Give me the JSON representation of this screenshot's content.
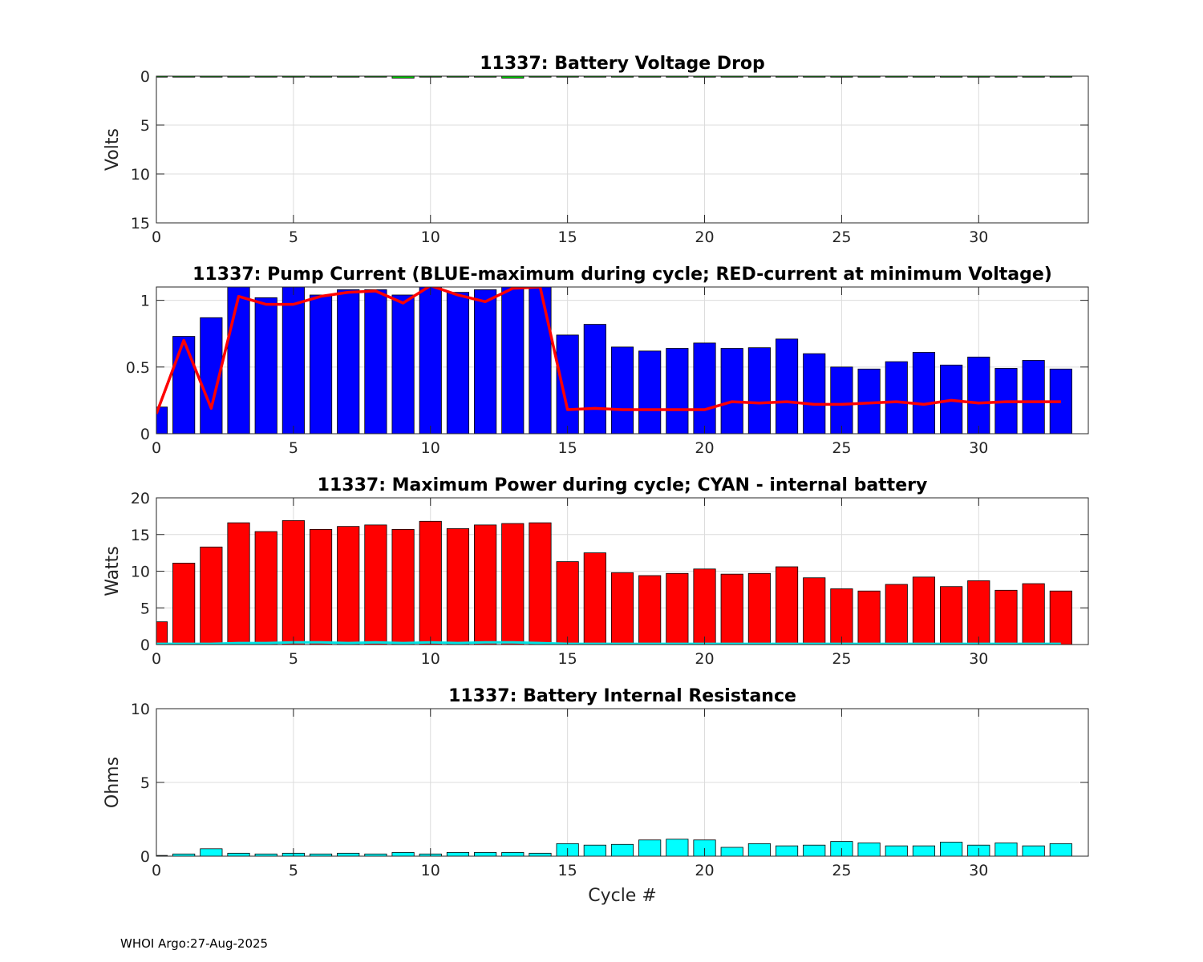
{
  "footer": "WHOI Argo:27-Aug-2025",
  "chart_data": [
    {
      "type": "bar",
      "title": "11337: Battery Voltage Drop",
      "ylabel": "Volts",
      "xlabel": "",
      "xlim": [
        0,
        34
      ],
      "ylim": [
        0,
        15
      ],
      "y_reversed": true,
      "x_ticks": [
        0,
        5,
        10,
        15,
        20,
        25,
        30
      ],
      "y_ticks": [
        0,
        5,
        10,
        15
      ],
      "grid": true,
      "series": [
        {
          "color": "#00cc00",
          "x": [
            0,
            1,
            2,
            3,
            4,
            5,
            6,
            7,
            8,
            9,
            10,
            11,
            12,
            13,
            14,
            15,
            16,
            17,
            18,
            19,
            20,
            21,
            22,
            23,
            24,
            25,
            26,
            27,
            28,
            29,
            30,
            31,
            32,
            33
          ],
          "values": [
            0.05,
            0.05,
            0.05,
            0.1,
            0.05,
            0.05,
            0.05,
            0.1,
            0.05,
            0.2,
            0.05,
            0.1,
            0.1,
            0.2,
            0.1,
            0.05,
            0.05,
            0.05,
            0.1,
            0.1,
            0.1,
            0.05,
            0.1,
            0.05,
            0.05,
            0.1,
            0.1,
            0.05,
            0.05,
            0.1,
            0.1,
            0.1,
            0.1,
            0.1
          ]
        }
      ]
    },
    {
      "type": "bar",
      "title": "11337: Pump Current (BLUE-maximum during cycle; RED-current at minimum Voltage)",
      "ylabel": "",
      "xlabel": "",
      "xlim": [
        0,
        34
      ],
      "ylim": [
        0,
        1.1
      ],
      "x_ticks": [
        0,
        5,
        10,
        15,
        20,
        25,
        30
      ],
      "y_ticks": [
        0,
        0.5,
        1
      ],
      "grid": true,
      "series": [
        {
          "color": "#0000ff",
          "x": [
            0,
            1,
            2,
            3,
            4,
            5,
            6,
            7,
            8,
            9,
            10,
            11,
            12,
            13,
            14,
            15,
            16,
            17,
            18,
            19,
            20,
            21,
            22,
            23,
            24,
            25,
            26,
            27,
            28,
            29,
            30,
            31,
            32,
            33
          ],
          "values": [
            0.2,
            0.73,
            0.87,
            1.1,
            1.02,
            1.12,
            1.04,
            1.08,
            1.08,
            1.04,
            1.12,
            1.06,
            1.08,
            1.1,
            1.1,
            0.74,
            0.82,
            0.65,
            0.62,
            0.64,
            0.68,
            0.64,
            0.645,
            0.71,
            0.6,
            0.5,
            0.485,
            0.54,
            0.61,
            0.515,
            0.575,
            0.49,
            0.55,
            0.485
          ]
        },
        {
          "color": "#ff0000",
          "kind": "line",
          "x": [
            0,
            1,
            2,
            3,
            4,
            5,
            6,
            7,
            8,
            9,
            10,
            11,
            12,
            13,
            14,
            15,
            16,
            17,
            18,
            19,
            20,
            21,
            22,
            23,
            24,
            25,
            26,
            27,
            28,
            29,
            30,
            31,
            32,
            33
          ],
          "values": [
            0.15,
            0.7,
            0.19,
            1.03,
            0.97,
            0.97,
            1.03,
            1.06,
            1.07,
            0.98,
            1.11,
            1.04,
            0.99,
            1.09,
            1.1,
            0.18,
            0.19,
            0.18,
            0.18,
            0.18,
            0.18,
            0.24,
            0.23,
            0.24,
            0.22,
            0.22,
            0.23,
            0.24,
            0.22,
            0.25,
            0.23,
            0.24,
            0.24,
            0.24
          ]
        }
      ]
    },
    {
      "type": "bar",
      "title": "11337: Maximum Power during cycle; CYAN - internal battery",
      "ylabel": "Watts",
      "xlabel": "",
      "xlim": [
        0,
        34
      ],
      "ylim": [
        0,
        20
      ],
      "x_ticks": [
        0,
        5,
        10,
        15,
        20,
        25,
        30
      ],
      "y_ticks": [
        0,
        5,
        10,
        15,
        20
      ],
      "grid": true,
      "series": [
        {
          "color": "#ff0000",
          "x": [
            0,
            1,
            2,
            3,
            4,
            5,
            6,
            7,
            8,
            9,
            10,
            11,
            12,
            13,
            14,
            15,
            16,
            17,
            18,
            19,
            20,
            21,
            22,
            23,
            24,
            25,
            26,
            27,
            28,
            29,
            30,
            31,
            32,
            33
          ],
          "values": [
            3.1,
            11.1,
            13.3,
            16.6,
            15.4,
            16.9,
            15.7,
            16.1,
            16.3,
            15.7,
            16.8,
            15.8,
            16.3,
            16.5,
            16.6,
            11.3,
            12.5,
            9.8,
            9.4,
            9.7,
            10.3,
            9.6,
            9.7,
            10.6,
            9.1,
            7.6,
            7.3,
            8.2,
            9.2,
            7.9,
            8.7,
            7.4,
            8.3,
            7.3
          ]
        },
        {
          "color": "#00e5e5",
          "kind": "line",
          "x": [
            0,
            1,
            2,
            3,
            4,
            5,
            6,
            7,
            8,
            9,
            10,
            11,
            12,
            13,
            14,
            15,
            16,
            17,
            18,
            19,
            20,
            21,
            22,
            23,
            24,
            25,
            26,
            27,
            28,
            29,
            30,
            31,
            32,
            33
          ],
          "values": [
            0.1,
            0.1,
            0.1,
            0.2,
            0.2,
            0.3,
            0.3,
            0.2,
            0.3,
            0.2,
            0.3,
            0.2,
            0.3,
            0.3,
            0.2,
            0.1,
            0.1,
            0.1,
            0.1,
            0.1,
            0.1,
            0.1,
            0.1,
            0.1,
            0.1,
            0.1,
            0.1,
            0.1,
            0.1,
            0.1,
            0.1,
            0.1,
            0.1,
            0.1
          ]
        }
      ]
    },
    {
      "type": "bar",
      "title": "11337: Battery Internal Resistance",
      "ylabel": "Ohms",
      "xlabel": "Cycle #",
      "xlim": [
        0,
        34
      ],
      "ylim": [
        0,
        10
      ],
      "x_ticks": [
        0,
        5,
        10,
        15,
        20,
        25,
        30
      ],
      "y_ticks": [
        0,
        5,
        10
      ],
      "grid": true,
      "series": [
        {
          "color": "#00ffff",
          "x": [
            0,
            1,
            2,
            3,
            4,
            5,
            6,
            7,
            8,
            9,
            10,
            11,
            12,
            13,
            14,
            15,
            16,
            17,
            18,
            19,
            20,
            21,
            22,
            23,
            24,
            25,
            26,
            27,
            28,
            29,
            30,
            31,
            32,
            33
          ],
          "values": [
            0.05,
            0.15,
            0.5,
            0.2,
            0.15,
            0.2,
            0.15,
            0.2,
            0.15,
            0.25,
            0.15,
            0.25,
            0.25,
            0.25,
            0.2,
            0.85,
            0.75,
            0.8,
            1.1,
            1.15,
            1.1,
            0.6,
            0.85,
            0.7,
            0.75,
            1.0,
            0.9,
            0.7,
            0.7,
            0.95,
            0.75,
            0.9,
            0.7,
            0.85
          ]
        }
      ]
    }
  ]
}
